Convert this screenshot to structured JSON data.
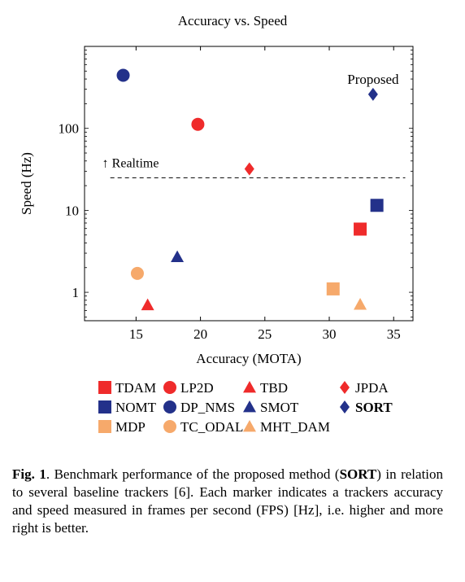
{
  "chart_data": {
    "type": "scatter",
    "title": "Accuracy vs. Speed",
    "xlabel": "Accuracy (MOTA)",
    "ylabel": "Speed (Hz)",
    "x_ticks": [
      15,
      20,
      25,
      30,
      35
    ],
    "y_ticks": [
      1,
      10,
      100
    ],
    "xlim": [
      11,
      36.5
    ],
    "ylim": [
      0.45,
      1000
    ],
    "y_scale": "log",
    "grid": false,
    "legend_position": "below",
    "colors": {
      "red": "#ef2b2b",
      "navy": "#23318a",
      "orange": "#f6a96b"
    },
    "series": [
      {
        "name": "TDAM",
        "x": 32.4,
        "y": 5.9,
        "shape": "square",
        "color": "#ef2b2b"
      },
      {
        "name": "LP2D",
        "x": 19.8,
        "y": 112,
        "shape": "circle",
        "color": "#ef2b2b"
      },
      {
        "name": "TBD",
        "x": 15.9,
        "y": 0.7,
        "shape": "triangle",
        "color": "#ef2b2b"
      },
      {
        "name": "JPDA",
        "x": 23.8,
        "y": 32,
        "shape": "diamond",
        "color": "#ef2b2b"
      },
      {
        "name": "NOMT",
        "x": 33.7,
        "y": 11.5,
        "shape": "square",
        "color": "#23318a"
      },
      {
        "name": "DP_NMS",
        "x": 14.0,
        "y": 444,
        "shape": "circle",
        "color": "#23318a"
      },
      {
        "name": "SMOT",
        "x": 18.2,
        "y": 2.7,
        "shape": "triangle",
        "color": "#23318a"
      },
      {
        "name": "SORT",
        "x": 33.4,
        "y": 260,
        "shape": "diamond",
        "color": "#23318a",
        "bold": true
      },
      {
        "name": "MDP",
        "x": 30.3,
        "y": 1.1,
        "shape": "square",
        "color": "#f6a96b"
      },
      {
        "name": "TC_ODAL",
        "x": 15.1,
        "y": 1.7,
        "shape": "circle",
        "color": "#f6a96b"
      },
      {
        "name": "MHT_DAM",
        "x": 32.4,
        "y": 0.71,
        "shape": "triangle",
        "color": "#f6a96b"
      }
    ],
    "realtime_line": {
      "y": 25,
      "x_from": 13.0,
      "x_to": 35.9,
      "label": "↑ Realtime"
    },
    "annotation": {
      "text": "Proposed"
    }
  },
  "caption": {
    "fig_label": "Fig. 1",
    "text_1": ".   Benchmark performance of the proposed method (",
    "sort_bold": "SORT",
    "text_2": ") in relation to several baseline trackers [6].  Each marker indicates a trackers accuracy and speed measured in frames per second (FPS) [Hz], i.e.  higher and more right is better."
  }
}
